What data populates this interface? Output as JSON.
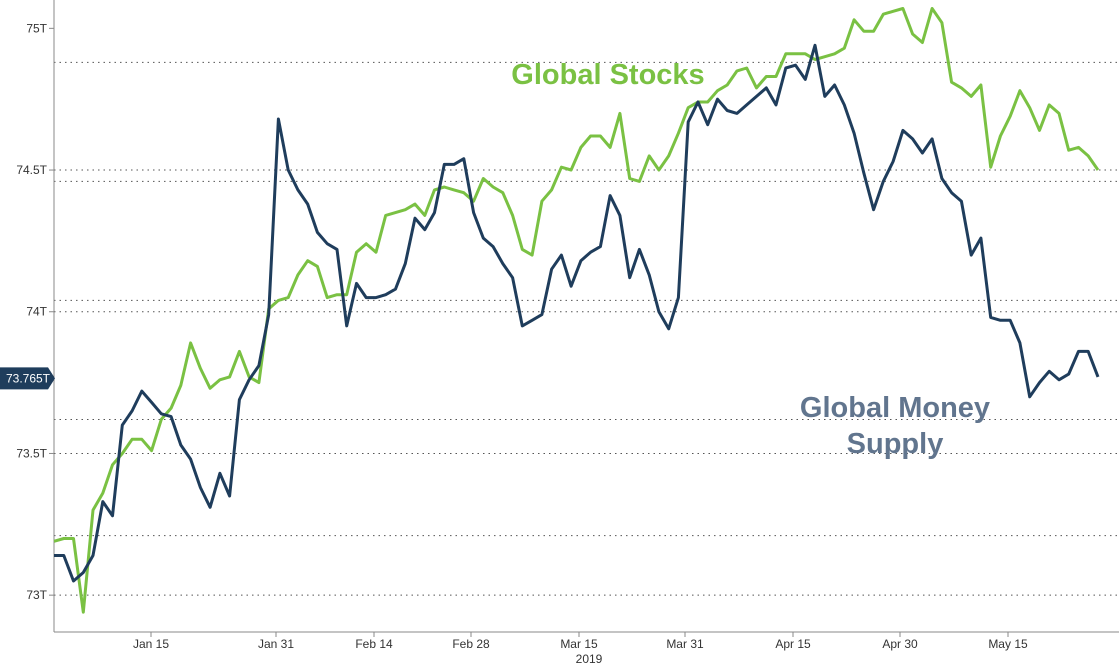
{
  "chart_data": {
    "type": "line",
    "year_label": "2019",
    "y_ticks": [
      {
        "label": "73T",
        "value": 73.0
      },
      {
        "label": "73.5T",
        "value": 73.5
      },
      {
        "label": "74T",
        "value": 74.0
      },
      {
        "label": "74.5T",
        "value": 74.5
      },
      {
        "label": "75T",
        "value": 75.0
      }
    ],
    "gridlines": [
      73.0,
      73.21,
      73.5,
      73.62,
      74.0,
      74.04,
      74.5,
      74.46,
      74.88
    ],
    "ylim": [
      72.87,
      75.1
    ],
    "x_ticks": [
      "Jan 15",
      "Jan 31",
      "Feb 14",
      "Feb 28",
      "Mar 15",
      "Mar 31",
      "Apr 15",
      "Apr 30",
      "May 15"
    ],
    "current_value_label": "73.765T",
    "current_value": 73.765,
    "series": [
      {
        "name": "Global Stocks",
        "color": "#7ac143",
        "annotation": "Global Stocks",
        "values": [
          73.19,
          73.2,
          73.2,
          72.94,
          73.3,
          73.36,
          73.46,
          73.5,
          73.55,
          73.55,
          73.51,
          73.62,
          73.66,
          73.74,
          73.89,
          73.8,
          73.73,
          73.76,
          73.77,
          73.86,
          73.77,
          73.75,
          74.01,
          74.04,
          74.05,
          74.13,
          74.18,
          74.16,
          74.05,
          74.06,
          74.06,
          74.21,
          74.24,
          74.21,
          74.34,
          74.35,
          74.36,
          74.38,
          74.34,
          74.43,
          74.44,
          74.43,
          74.42,
          74.39,
          74.47,
          74.44,
          74.42,
          74.34,
          74.22,
          74.2,
          74.39,
          74.43,
          74.51,
          74.5,
          74.58,
          74.62,
          74.62,
          74.58,
          74.7,
          74.47,
          74.46,
          74.55,
          74.5,
          74.55,
          74.63,
          74.72,
          74.74,
          74.74,
          74.78,
          74.8,
          74.85,
          74.86,
          74.79,
          74.83,
          74.83,
          74.91,
          74.91,
          74.91,
          74.89,
          74.9,
          74.91,
          74.93,
          75.03,
          74.99,
          74.99,
          75.05,
          75.06,
          75.07,
          74.98,
          74.95,
          75.07,
          75.02,
          74.81,
          74.79,
          74.76,
          74.8,
          74.51,
          74.62,
          74.69,
          74.78,
          74.72,
          74.64,
          74.73,
          74.7,
          74.57,
          74.58,
          74.55,
          74.5
        ]
      },
      {
        "name": "Global Money Supply",
        "color": "#1f3d5c",
        "annotation": "Global Money Supply",
        "annotation_lines": [
          "Global Money",
          "Supply"
        ],
        "values": [
          73.14,
          73.14,
          73.05,
          73.08,
          73.14,
          73.33,
          73.28,
          73.6,
          73.65,
          73.72,
          73.68,
          73.64,
          73.63,
          73.53,
          73.48,
          73.38,
          73.31,
          73.43,
          73.35,
          73.69,
          73.76,
          73.81,
          73.99,
          74.68,
          74.5,
          74.43,
          74.38,
          74.28,
          74.24,
          74.22,
          73.95,
          74.1,
          74.05,
          74.05,
          74.06,
          74.08,
          74.17,
          74.33,
          74.29,
          74.35,
          74.52,
          74.52,
          74.54,
          74.35,
          74.26,
          74.23,
          74.17,
          74.12,
          73.95,
          73.97,
          73.99,
          74.15,
          74.2,
          74.09,
          74.18,
          74.21,
          74.23,
          74.41,
          74.34,
          74.12,
          74.22,
          74.13,
          74.0,
          73.94,
          74.05,
          74.67,
          74.74,
          74.66,
          74.75,
          74.71,
          74.7,
          74.73,
          74.76,
          74.79,
          74.73,
          74.86,
          74.87,
          74.82,
          74.94,
          74.76,
          74.8,
          74.73,
          74.63,
          74.49,
          74.36,
          74.46,
          74.53,
          74.64,
          74.61,
          74.56,
          74.61,
          74.47,
          74.42,
          74.39,
          74.2,
          74.26,
          73.98,
          73.97,
          73.97,
          73.89,
          73.7,
          73.75,
          73.79,
          73.76,
          73.78,
          73.86,
          73.86,
          73.77
        ]
      }
    ]
  }
}
